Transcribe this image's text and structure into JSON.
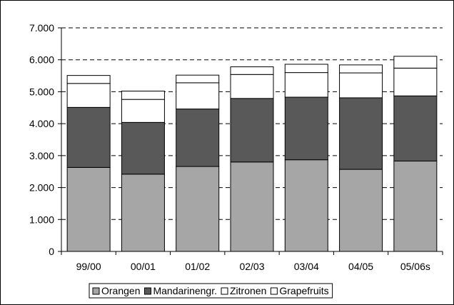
{
  "chart_data": {
    "type": "bar",
    "stacked": true,
    "categories": [
      "99/00",
      "00/01",
      "01/02",
      "02/03",
      "03/04",
      "04/05",
      "05/06s"
    ],
    "series": [
      {
        "name": "Orangen",
        "color": "#a6a6a6",
        "values": [
          2630,
          2420,
          2660,
          2800,
          2870,
          2570,
          2830
        ]
      },
      {
        "name": "Mandarinengr.",
        "color": "#595959",
        "values": [
          1880,
          1620,
          1800,
          1990,
          1960,
          2240,
          2040
        ]
      },
      {
        "name": "Zitronen",
        "color": "#ffffff",
        "values": [
          750,
          720,
          820,
          750,
          770,
          780,
          870
        ]
      },
      {
        "name": "Grapefruits",
        "color": "#ffffff",
        "values": [
          250,
          260,
          240,
          240,
          260,
          250,
          370
        ]
      }
    ],
    "yticks": [
      "0",
      "1.000",
      "2.000",
      "3.000",
      "4.000",
      "5.000",
      "6.000",
      "7.000"
    ],
    "ylim": [
      0,
      7000
    ],
    "grid": "dashed horizontal",
    "legend_position": "bottom"
  }
}
